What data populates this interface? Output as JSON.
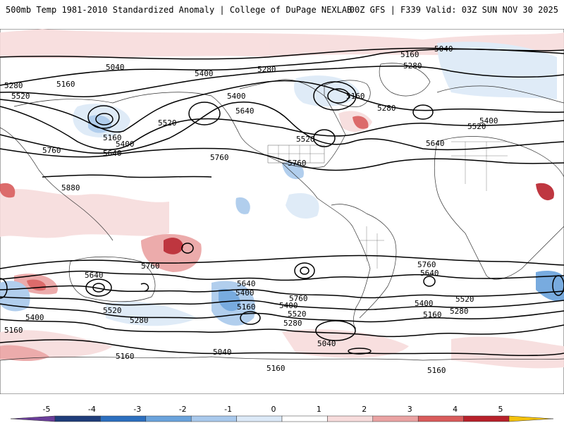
{
  "header": {
    "title_left": "500mb Temp 1981-2010 Standardized Anomaly | College of DuPage NEXLAB",
    "title_right": "00Z GFS | F339 Valid: 03Z SUN NOV 30 2025"
  },
  "colorbar": {
    "ticks": [
      "-5",
      "-4",
      "-3",
      "-2",
      "-1",
      "0",
      "1",
      "2",
      "3",
      "4",
      "5"
    ],
    "colors": [
      "#6a3d9a",
      "#1f3d7a",
      "#2c6fbf",
      "#6aa3dc",
      "#a9c9ec",
      "#dce9f7",
      "#ffffff",
      "#f7dcdc",
      "#eaa3a3",
      "#d95b5b",
      "#b8212b",
      "#7a0e16",
      "#f4c20d"
    ]
  },
  "contour_labels": [
    {
      "id": "l5040a",
      "text": "5040"
    },
    {
      "id": "l5040b",
      "text": "5040"
    },
    {
      "id": "l5160a",
      "text": "5160"
    },
    {
      "id": "l5160b",
      "text": "5160"
    },
    {
      "id": "l5160c",
      "text": "5160"
    },
    {
      "id": "l5160d",
      "text": "5160"
    },
    {
      "id": "l5280a",
      "text": "5280"
    },
    {
      "id": "l5280b",
      "text": "5280"
    },
    {
      "id": "l5280c",
      "text": "5280"
    },
    {
      "id": "l5280d",
      "text": "5280"
    },
    {
      "id": "l5400a",
      "text": "5400"
    },
    {
      "id": "l5400b",
      "text": "5400"
    },
    {
      "id": "l5400c",
      "text": "5400"
    },
    {
      "id": "l5400d",
      "text": "5400"
    },
    {
      "id": "l5520a",
      "text": "5520"
    },
    {
      "id": "l5520b",
      "text": "5520"
    },
    {
      "id": "l5520c",
      "text": "5520"
    },
    {
      "id": "l5520d",
      "text": "5520"
    },
    {
      "id": "l5640a",
      "text": "5640"
    },
    {
      "id": "l5640b",
      "text": "5640"
    },
    {
      "id": "l5640c",
      "text": "5640"
    },
    {
      "id": "l5760a",
      "text": "5760"
    },
    {
      "id": "l5760b",
      "text": "5760"
    },
    {
      "id": "l5760c",
      "text": "5760"
    },
    {
      "id": "l5880a",
      "text": "5880"
    },
    {
      "id": "s5640a",
      "text": "5640"
    },
    {
      "id": "s5640b",
      "text": "5640"
    },
    {
      "id": "s5640c",
      "text": "5640"
    },
    {
      "id": "s5760a",
      "text": "5760"
    },
    {
      "id": "s5760b",
      "text": "5760"
    },
    {
      "id": "s5760c",
      "text": "5760"
    },
    {
      "id": "s5520a",
      "text": "5520"
    },
    {
      "id": "s5520b",
      "text": "5520"
    },
    {
      "id": "s5520c",
      "text": "5520"
    },
    {
      "id": "s5400a",
      "text": "5400"
    },
    {
      "id": "s5400b",
      "text": "5400"
    },
    {
      "id": "s5400c",
      "text": "5400"
    },
    {
      "id": "s5400d",
      "text": "5400"
    },
    {
      "id": "s5280a",
      "text": "5280"
    },
    {
      "id": "s5280b",
      "text": "5280"
    },
    {
      "id": "s5280c",
      "text": "5280"
    },
    {
      "id": "s5160a",
      "text": "5160"
    },
    {
      "id": "s5160b",
      "text": "5160"
    },
    {
      "id": "s5160c",
      "text": "5160"
    },
    {
      "id": "s5160d",
      "text": "5160"
    },
    {
      "id": "s5160e",
      "text": "5160"
    },
    {
      "id": "s5160f",
      "text": "5160"
    },
    {
      "id": "s5040a",
      "text": "5040"
    },
    {
      "id": "s5040b",
      "text": "5040"
    }
  ]
}
